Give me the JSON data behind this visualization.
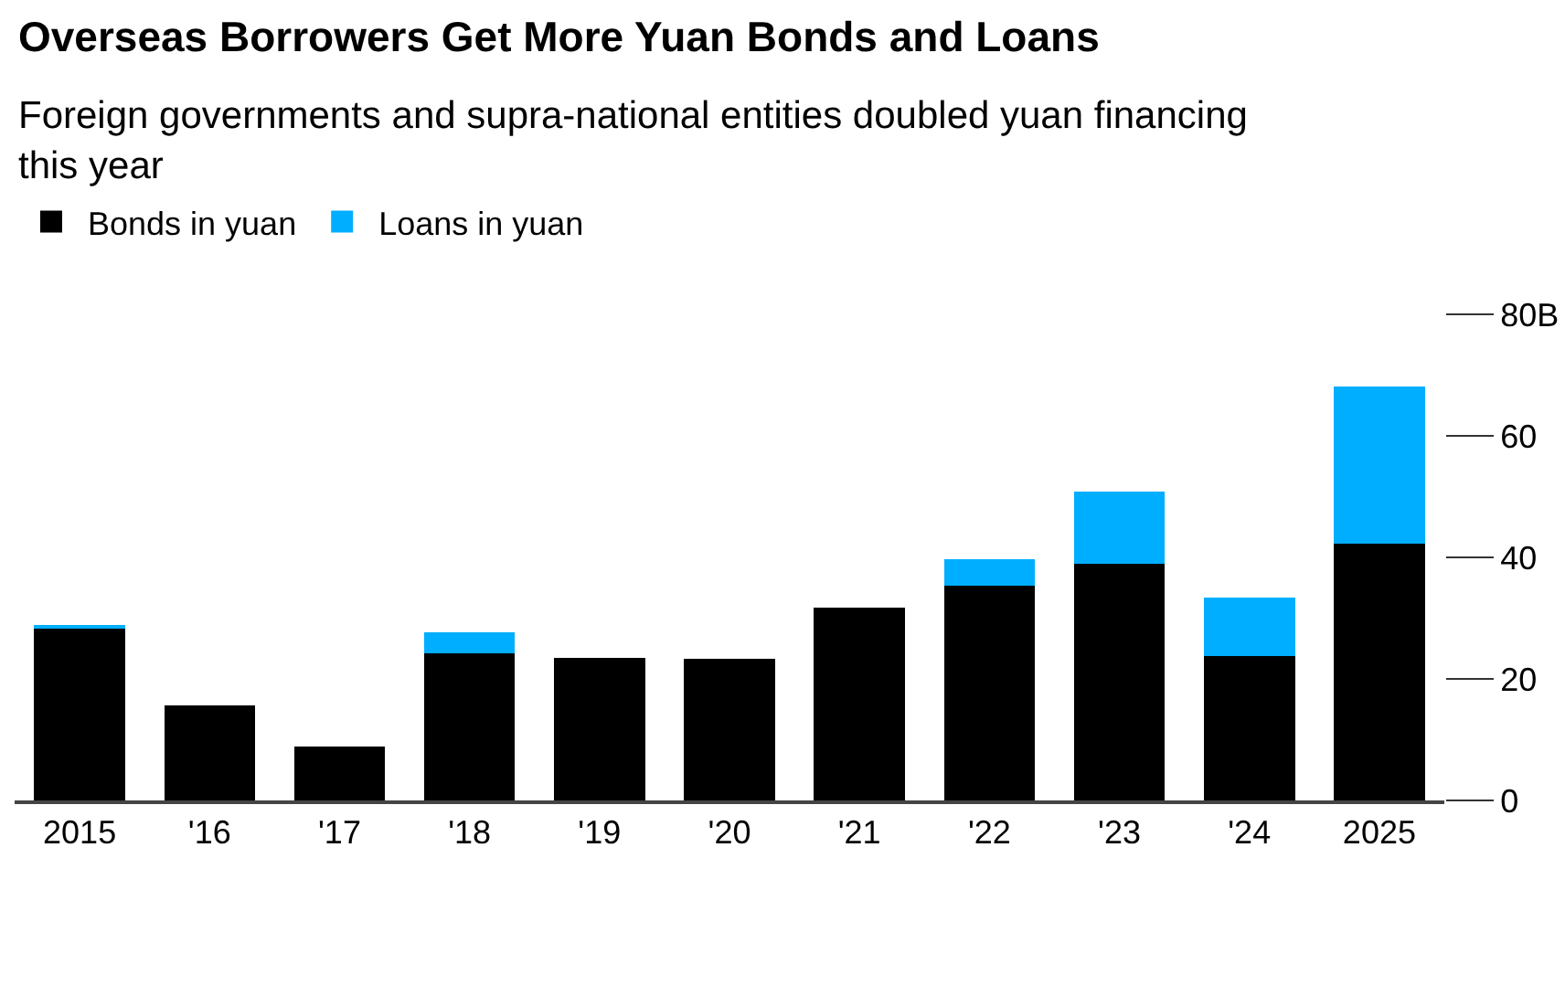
{
  "chart_data": {
    "type": "bar",
    "stacked": true,
    "title": "Overseas Borrowers Get More Yuan Bonds and Loans",
    "subtitle": "Foreign governments and supra-national entities doubled yuan financing this year",
    "categories": [
      "2015",
      "'16",
      "'17",
      "'18",
      "'19",
      "'20",
      "'21",
      "'22",
      "'23",
      "'24",
      "2025"
    ],
    "series": [
      {
        "name": "Bonds in yuan",
        "color": "#000000",
        "values": [
          28.5,
          15.6,
          8.9,
          24.2,
          23.4,
          23.3,
          31.8,
          35.3,
          39.0,
          23.8,
          42.2
        ]
      },
      {
        "name": "Loans in yuan",
        "color": "#00aeff",
        "values": [
          0.4,
          null,
          null,
          3.4,
          null,
          null,
          null,
          4.4,
          11.8,
          9.6,
          25.9
        ]
      }
    ],
    "ylim": [
      0,
      80
    ],
    "yticks": [
      0,
      20,
      40,
      60,
      {
        "value": 80,
        "label": "80B"
      }
    ],
    "legend": "top left"
  }
}
